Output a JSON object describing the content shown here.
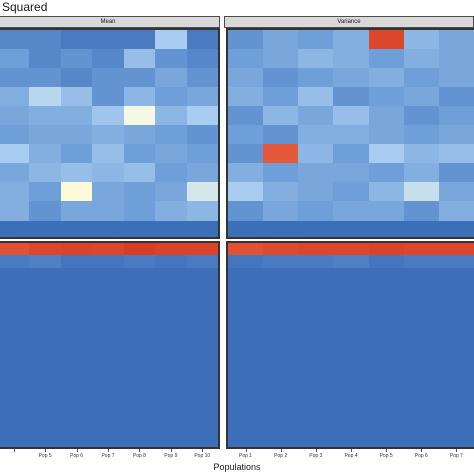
{
  "figure": {
    "title": "Squared",
    "xlabel": "Populations"
  },
  "colors": {
    "base": "#3d6fb8",
    "mid": "#6f9fd8",
    "light": "#a9cdf0",
    "pale": "#f4f8e4",
    "yellow": "#fffbc8",
    "red": "#d73a22",
    "orange": "#e5593a"
  },
  "chart_data": {
    "type": "heatmap",
    "facets": [
      {
        "name": "Mean",
        "columns": [
          "",
          "Pop 5",
          "Pop 6",
          "Pop 7",
          "Pop 8",
          "Pop 9",
          "Pop 10"
        ],
        "rows_top": [
          [
            0.15,
            0.15,
            0.1,
            0.1,
            0.1,
            0.55,
            0.1
          ],
          [
            0.25,
            0.15,
            0.2,
            0.15,
            0.45,
            0.2,
            0.15
          ],
          [
            0.2,
            0.2,
            0.15,
            0.2,
            0.2,
            0.3,
            0.2
          ],
          [
            0.35,
            0.6,
            0.45,
            0.2,
            0.4,
            0.25,
            0.3
          ],
          [
            0.3,
            0.35,
            0.35,
            0.5,
            0.8,
            0.4,
            0.55
          ],
          [
            0.25,
            0.3,
            0.3,
            0.35,
            0.3,
            0.25,
            0.2
          ],
          [
            0.55,
            0.35,
            0.25,
            0.45,
            0.25,
            0.3,
            0.25
          ],
          [
            0.3,
            0.4,
            0.45,
            0.4,
            0.45,
            0.25,
            0.3
          ],
          [
            0.35,
            0.25,
            0.85,
            0.3,
            0.25,
            0.3,
            0.7
          ],
          [
            0.35,
            0.2,
            0.3,
            0.3,
            0.25,
            0.35,
            0.4
          ]
        ],
        "rows_bottom": [
          [
            0.92,
            0.95,
            0.96,
            0.95,
            0.97,
            0.96,
            0.96
          ],
          [
            0.1,
            0.12,
            0.08,
            0.08,
            0.1,
            0.08,
            0.1
          ]
        ]
      },
      {
        "name": "Variance",
        "columns": [
          "Pop 1",
          "Pop 2",
          "Pop 3",
          "Pop 4",
          "Pop 5",
          "Pop 6",
          "Pop 7"
        ],
        "rows_top": [
          [
            0.2,
            0.3,
            0.25,
            0.35,
            0.95,
            0.4,
            0.3
          ],
          [
            0.25,
            0.3,
            0.4,
            0.35,
            0.25,
            0.35,
            0.3
          ],
          [
            0.3,
            0.2,
            0.25,
            0.3,
            0.35,
            0.25,
            0.3
          ],
          [
            0.35,
            0.25,
            0.45,
            0.2,
            0.25,
            0.3,
            0.2
          ],
          [
            0.2,
            0.4,
            0.3,
            0.45,
            0.3,
            0.2,
            0.25
          ],
          [
            0.25,
            0.2,
            0.35,
            0.35,
            0.3,
            0.25,
            0.3
          ],
          [
            0.2,
            0.9,
            0.4,
            0.25,
            0.55,
            0.4,
            0.45
          ],
          [
            0.35,
            0.25,
            0.3,
            0.3,
            0.25,
            0.35,
            0.2
          ],
          [
            0.55,
            0.35,
            0.3,
            0.25,
            0.4,
            0.65,
            0.3
          ],
          [
            0.2,
            0.3,
            0.25,
            0.3,
            0.3,
            0.2,
            0.35
          ]
        ],
        "rows_bottom": [
          [
            0.92,
            0.94,
            0.95,
            0.95,
            0.96,
            0.95,
            0.95
          ],
          [
            0.08,
            0.1,
            0.1,
            0.12,
            0.08,
            0.1,
            0.1
          ]
        ]
      }
    ]
  }
}
